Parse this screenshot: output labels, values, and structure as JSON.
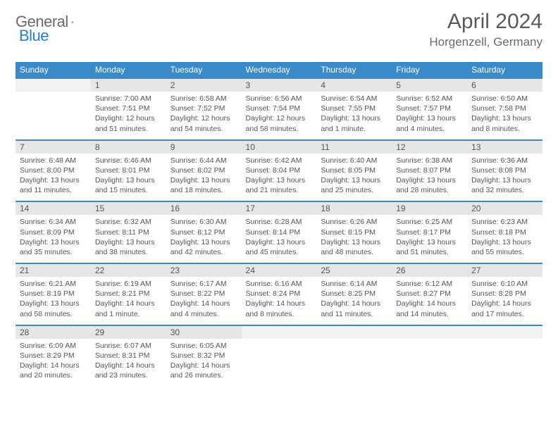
{
  "logo": {
    "textA": "General",
    "textB": "Blue"
  },
  "title": "April 2024",
  "location": "Horgenzell, Germany",
  "colors": {
    "header_bg": "#3a89c9",
    "header_text": "#ffffff",
    "daynum_bg": "#e6e6e6",
    "empty_bg": "#f2f2f2",
    "body_text": "#555555",
    "page_bg": "#ffffff"
  },
  "fonts": {
    "title_size_pt": 22,
    "location_size_pt": 13,
    "dayheader_size_pt": 9,
    "daynum_size_pt": 9,
    "cell_size_pt": 8
  },
  "day_headers": [
    "Sunday",
    "Monday",
    "Tuesday",
    "Wednesday",
    "Thursday",
    "Friday",
    "Saturday"
  ],
  "weeks": [
    {
      "nums": [
        "",
        "1",
        "2",
        "3",
        "4",
        "5",
        "6"
      ],
      "cells": [
        {
          "sunrise": "",
          "sunset": "",
          "daylight": ""
        },
        {
          "sunrise": "Sunrise: 7:00 AM",
          "sunset": "Sunset: 7:51 PM",
          "daylight": "Daylight: 12 hours and 51 minutes."
        },
        {
          "sunrise": "Sunrise: 6:58 AM",
          "sunset": "Sunset: 7:52 PM",
          "daylight": "Daylight: 12 hours and 54 minutes."
        },
        {
          "sunrise": "Sunrise: 6:56 AM",
          "sunset": "Sunset: 7:54 PM",
          "daylight": "Daylight: 12 hours and 58 minutes."
        },
        {
          "sunrise": "Sunrise: 6:54 AM",
          "sunset": "Sunset: 7:55 PM",
          "daylight": "Daylight: 13 hours and 1 minute."
        },
        {
          "sunrise": "Sunrise: 6:52 AM",
          "sunset": "Sunset: 7:57 PM",
          "daylight": "Daylight: 13 hours and 4 minutes."
        },
        {
          "sunrise": "Sunrise: 6:50 AM",
          "sunset": "Sunset: 7:58 PM",
          "daylight": "Daylight: 13 hours and 8 minutes."
        }
      ]
    },
    {
      "nums": [
        "7",
        "8",
        "9",
        "10",
        "11",
        "12",
        "13"
      ],
      "cells": [
        {
          "sunrise": "Sunrise: 6:48 AM",
          "sunset": "Sunset: 8:00 PM",
          "daylight": "Daylight: 13 hours and 11 minutes."
        },
        {
          "sunrise": "Sunrise: 6:46 AM",
          "sunset": "Sunset: 8:01 PM",
          "daylight": "Daylight: 13 hours and 15 minutes."
        },
        {
          "sunrise": "Sunrise: 6:44 AM",
          "sunset": "Sunset: 8:02 PM",
          "daylight": "Daylight: 13 hours and 18 minutes."
        },
        {
          "sunrise": "Sunrise: 6:42 AM",
          "sunset": "Sunset: 8:04 PM",
          "daylight": "Daylight: 13 hours and 21 minutes."
        },
        {
          "sunrise": "Sunrise: 6:40 AM",
          "sunset": "Sunset: 8:05 PM",
          "daylight": "Daylight: 13 hours and 25 minutes."
        },
        {
          "sunrise": "Sunrise: 6:38 AM",
          "sunset": "Sunset: 8:07 PM",
          "daylight": "Daylight: 13 hours and 28 minutes."
        },
        {
          "sunrise": "Sunrise: 6:36 AM",
          "sunset": "Sunset: 8:08 PM",
          "daylight": "Daylight: 13 hours and 32 minutes."
        }
      ]
    },
    {
      "nums": [
        "14",
        "15",
        "16",
        "17",
        "18",
        "19",
        "20"
      ],
      "cells": [
        {
          "sunrise": "Sunrise: 6:34 AM",
          "sunset": "Sunset: 8:09 PM",
          "daylight": "Daylight: 13 hours and 35 minutes."
        },
        {
          "sunrise": "Sunrise: 6:32 AM",
          "sunset": "Sunset: 8:11 PM",
          "daylight": "Daylight: 13 hours and 38 minutes."
        },
        {
          "sunrise": "Sunrise: 6:30 AM",
          "sunset": "Sunset: 8:12 PM",
          "daylight": "Daylight: 13 hours and 42 minutes."
        },
        {
          "sunrise": "Sunrise: 6:28 AM",
          "sunset": "Sunset: 8:14 PM",
          "daylight": "Daylight: 13 hours and 45 minutes."
        },
        {
          "sunrise": "Sunrise: 6:26 AM",
          "sunset": "Sunset: 8:15 PM",
          "daylight": "Daylight: 13 hours and 48 minutes."
        },
        {
          "sunrise": "Sunrise: 6:25 AM",
          "sunset": "Sunset: 8:17 PM",
          "daylight": "Daylight: 13 hours and 51 minutes."
        },
        {
          "sunrise": "Sunrise: 6:23 AM",
          "sunset": "Sunset: 8:18 PM",
          "daylight": "Daylight: 13 hours and 55 minutes."
        }
      ]
    },
    {
      "nums": [
        "21",
        "22",
        "23",
        "24",
        "25",
        "26",
        "27"
      ],
      "cells": [
        {
          "sunrise": "Sunrise: 6:21 AM",
          "sunset": "Sunset: 8:19 PM",
          "daylight": "Daylight: 13 hours and 58 minutes."
        },
        {
          "sunrise": "Sunrise: 6:19 AM",
          "sunset": "Sunset: 8:21 PM",
          "daylight": "Daylight: 14 hours and 1 minute."
        },
        {
          "sunrise": "Sunrise: 6:17 AM",
          "sunset": "Sunset: 8:22 PM",
          "daylight": "Daylight: 14 hours and 4 minutes."
        },
        {
          "sunrise": "Sunrise: 6:16 AM",
          "sunset": "Sunset: 8:24 PM",
          "daylight": "Daylight: 14 hours and 8 minutes."
        },
        {
          "sunrise": "Sunrise: 6:14 AM",
          "sunset": "Sunset: 8:25 PM",
          "daylight": "Daylight: 14 hours and 11 minutes."
        },
        {
          "sunrise": "Sunrise: 6:12 AM",
          "sunset": "Sunset: 8:27 PM",
          "daylight": "Daylight: 14 hours and 14 minutes."
        },
        {
          "sunrise": "Sunrise: 6:10 AM",
          "sunset": "Sunset: 8:28 PM",
          "daylight": "Daylight: 14 hours and 17 minutes."
        }
      ]
    },
    {
      "nums": [
        "28",
        "29",
        "30",
        "",
        "",
        "",
        ""
      ],
      "cells": [
        {
          "sunrise": "Sunrise: 6:09 AM",
          "sunset": "Sunset: 8:29 PM",
          "daylight": "Daylight: 14 hours and 20 minutes."
        },
        {
          "sunrise": "Sunrise: 6:07 AM",
          "sunset": "Sunset: 8:31 PM",
          "daylight": "Daylight: 14 hours and 23 minutes."
        },
        {
          "sunrise": "Sunrise: 6:05 AM",
          "sunset": "Sunset: 8:32 PM",
          "daylight": "Daylight: 14 hours and 26 minutes."
        },
        {
          "sunrise": "",
          "sunset": "",
          "daylight": ""
        },
        {
          "sunrise": "",
          "sunset": "",
          "daylight": ""
        },
        {
          "sunrise": "",
          "sunset": "",
          "daylight": ""
        },
        {
          "sunrise": "",
          "sunset": "",
          "daylight": ""
        }
      ]
    }
  ]
}
